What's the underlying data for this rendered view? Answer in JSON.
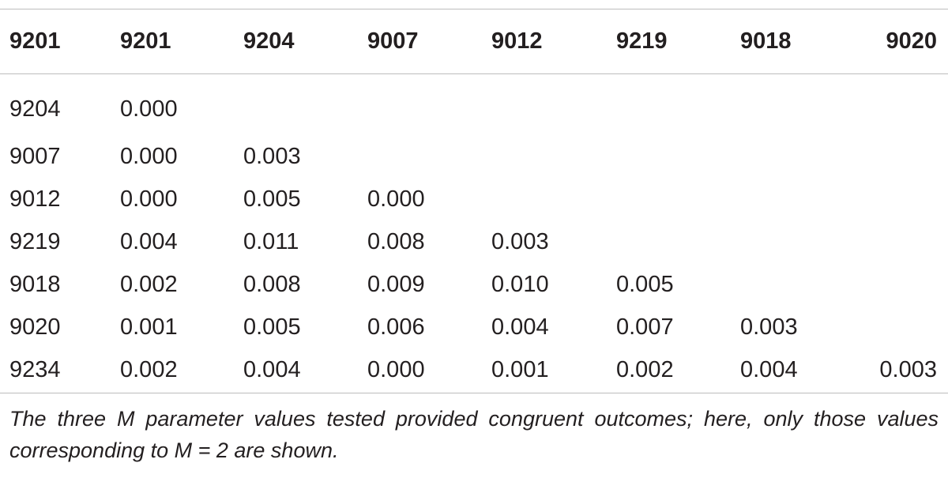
{
  "table": {
    "headers": [
      "9201",
      "9201",
      "9204",
      "9007",
      "9012",
      "9219",
      "9018",
      "9020"
    ],
    "rows": [
      [
        "9204",
        "0.000",
        "",
        "",
        "",
        "",
        "",
        ""
      ],
      [
        "9007",
        "0.000",
        "0.003",
        "",
        "",
        "",
        "",
        ""
      ],
      [
        "9012",
        "0.000",
        "0.005",
        "0.000",
        "",
        "",
        "",
        ""
      ],
      [
        "9219",
        "0.004",
        "0.011",
        "0.008",
        "0.003",
        "",
        "",
        ""
      ],
      [
        "9018",
        "0.002",
        "0.008",
        "0.009",
        "0.010",
        "0.005",
        "",
        ""
      ],
      [
        "9020",
        "0.001",
        "0.005",
        "0.006",
        "0.004",
        "0.007",
        "0.003",
        ""
      ],
      [
        "9234",
        "0.002",
        "0.004",
        "0.000",
        "0.001",
        "0.002",
        "0.004",
        "0.003"
      ]
    ]
  },
  "footnote": "The three M parameter values tested provided congruent outcomes; here, only those values corresponding to M = 2 are shown."
}
